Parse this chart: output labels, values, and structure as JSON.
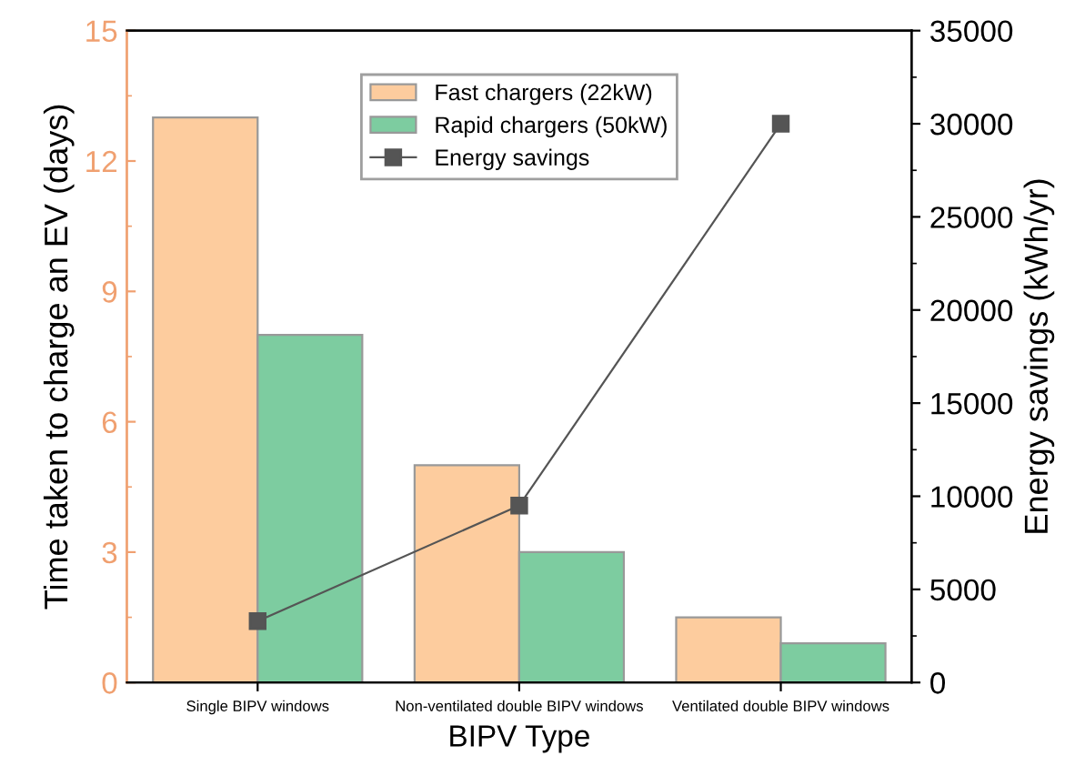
{
  "chart_data": {
    "type": "bar",
    "xlabel": "BIPV Type",
    "ylabel": "Time taken to charge an EV (days)",
    "y2label": "Energy savings (kWh/yr)",
    "categories": [
      "Single BIPV windows",
      "Non-ventilated double BIPV windows",
      "Ventilated double BIPV windows"
    ],
    "series": [
      {
        "name": "Fast chargers (22kW)",
        "color": "#fdcc9e",
        "values": [
          13,
          5,
          1.5
        ]
      },
      {
        "name": "Rapid chargers (50kW)",
        "color": "#7dcca0",
        "values": [
          8,
          3,
          0.9
        ]
      },
      {
        "name": "Energy savings",
        "type": "line",
        "axis": "y2",
        "color": "#555555",
        "marker": "square",
        "values": [
          3300,
          9500,
          30000
        ]
      }
    ],
    "ylim": [
      0,
      15
    ],
    "yticks": [
      0,
      3,
      6,
      9,
      12,
      15
    ],
    "y2lim": [
      0,
      35000
    ],
    "y2ticks": [
      0,
      5000,
      10000,
      15000,
      20000,
      25000,
      30000,
      35000
    ],
    "legend": "top",
    "grid": false
  }
}
